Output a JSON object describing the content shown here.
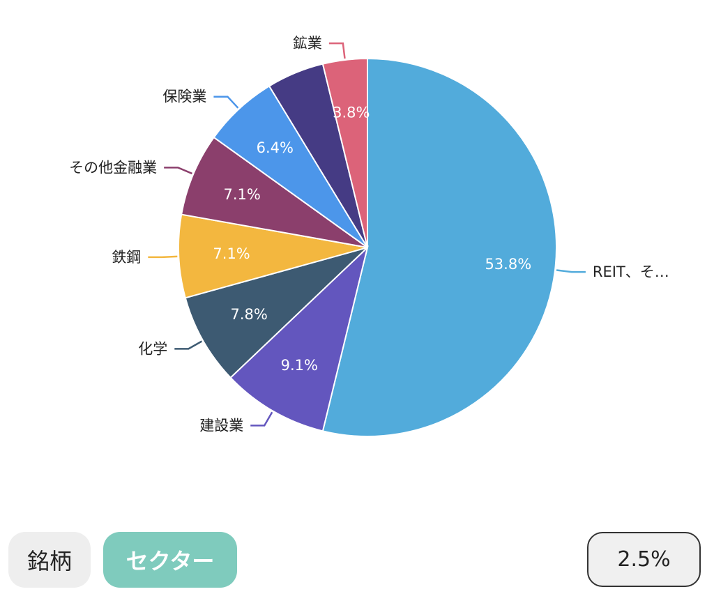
{
  "chart_data": {
    "type": "pie",
    "categories": [
      "REIT、そ…",
      "建設業",
      "化学",
      "鉄鋼",
      "その他金融業",
      "保険業",
      "",
      "鉱業"
    ],
    "values": [
      53.8,
      9.1,
      7.8,
      7.1,
      7.1,
      6.4,
      4.9,
      3.8
    ],
    "data_labels": [
      "53.8%",
      "9.1%",
      "7.8%",
      "7.1%",
      "7.1%",
      "6.4%",
      "",
      "3.8%"
    ],
    "colors": [
      "#52abdb",
      "#6356be",
      "#3d5a72",
      "#f3b73f",
      "#8b3f6c",
      "#4c96ea",
      "#453b84",
      "#dc6379"
    ],
    "title": ""
  },
  "controls": {
    "tabs": [
      {
        "label": "銘柄",
        "active": false
      },
      {
        "label": "セクター",
        "active": true
      }
    ],
    "yield_value": "2.5%"
  }
}
